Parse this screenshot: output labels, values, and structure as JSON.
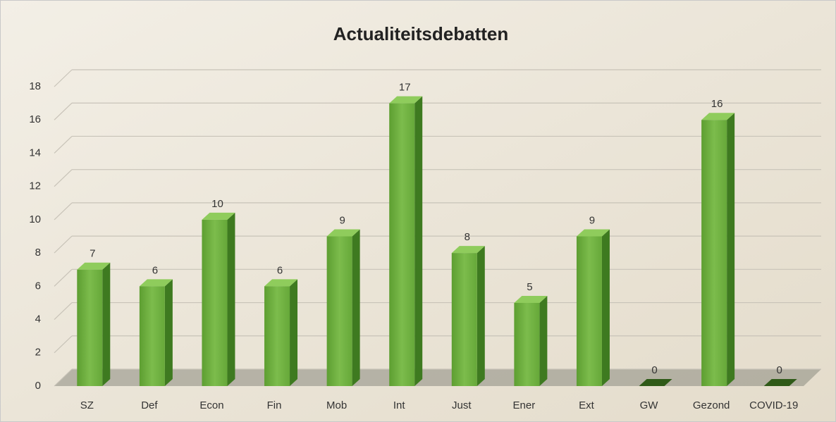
{
  "chart_data": {
    "type": "bar3d",
    "title": "Actualiteitsdebatten",
    "categories": [
      "SZ",
      "Def",
      "Econ",
      "Fin",
      "Mob",
      "Int",
      "Just",
      "Ener",
      "Ext",
      "GW",
      "Gezond",
      "COVID-19"
    ],
    "values": [
      7,
      6,
      10,
      6,
      9,
      17,
      8,
      5,
      9,
      0,
      16,
      0
    ],
    "color": "#6aae3c",
    "ylim": [
      0,
      18
    ],
    "yticks": [
      0,
      2,
      4,
      6,
      8,
      10,
      12,
      14,
      16,
      18
    ],
    "grid": true,
    "data_labels": true
  }
}
